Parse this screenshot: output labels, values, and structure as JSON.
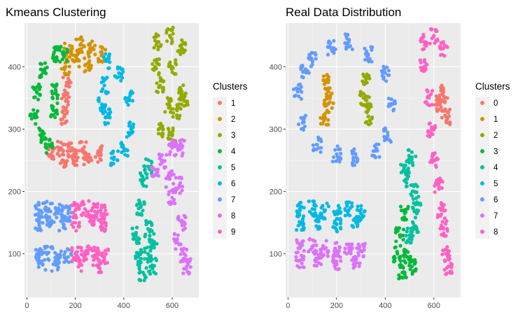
{
  "chart_data": [
    {
      "type": "scatter",
      "title": "Kmeans Clustering",
      "xlabel": "",
      "ylabel": "",
      "xlim": [
        -10,
        710
      ],
      "ylim": [
        30,
        470
      ],
      "x_ticks": [
        0,
        200,
        400,
        600
      ],
      "y_ticks": [
        100,
        200,
        300,
        400
      ],
      "grid": true,
      "legend": {
        "title": "Clusters",
        "placement": "right"
      },
      "series": [
        {
          "name": "1",
          "color": "#F8766D",
          "values": [
            [
              100,
              260
            ],
            [
              150,
              250
            ],
            [
              200,
              255
            ],
            [
              250,
              250
            ],
            [
              300,
              260
            ],
            [
              140,
              270
            ],
            [
              180,
              265
            ],
            [
              230,
              268
            ],
            [
              160,
              345
            ],
            [
              155,
              320
            ],
            [
              165,
              370
            ]
          ]
        },
        {
          "name": "2",
          "color": "#D39200",
          "values": [
            [
              170,
              425
            ],
            [
              220,
              435
            ],
            [
              270,
              430
            ],
            [
              310,
              420
            ],
            [
              200,
              410
            ],
            [
              250,
              405
            ],
            [
              160,
              400
            ]
          ]
        },
        {
          "name": "3",
          "color": "#93AA00",
          "values": [
            [
              540,
              440
            ],
            [
              590,
              450
            ],
            [
              640,
              430
            ],
            [
              530,
              400
            ],
            [
              600,
              400
            ],
            [
              550,
              370
            ],
            [
              580,
              340
            ],
            [
              560,
              300
            ],
            [
              600,
              290
            ],
            [
              620,
              330
            ],
            [
              650,
              345
            ],
            [
              640,
              360
            ]
          ]
        },
        {
          "name": "4",
          "color": "#00BA38",
          "values": [
            [
              40,
              360
            ],
            [
              70,
              395
            ],
            [
              110,
              420
            ],
            [
              150,
              420
            ],
            [
              30,
              320
            ],
            [
              60,
              290
            ],
            [
              90,
              275
            ],
            [
              120,
              360
            ],
            [
              110,
              330
            ]
          ]
        },
        {
          "name": "5",
          "color": "#00C19F",
          "values": [
            [
              480,
              220
            ],
            [
              500,
              240
            ],
            [
              470,
              175
            ],
            [
              450,
              130
            ],
            [
              460,
              95
            ],
            [
              480,
              70
            ],
            [
              520,
              80
            ],
            [
              500,
              140
            ],
            [
              520,
              120
            ],
            [
              500,
              100
            ]
          ]
        },
        {
          "name": "6",
          "color": "#00B9E3",
          "values": [
            [
              330,
              410
            ],
            [
              380,
              390
            ],
            [
              420,
              350
            ],
            [
              430,
              300
            ],
            [
              400,
              270
            ],
            [
              360,
              255
            ],
            [
              310,
              340
            ],
            [
              320,
              370
            ],
            [
              330,
              320
            ]
          ]
        },
        {
          "name": "7",
          "color": "#619CFF",
          "values": [
            [
              50,
              170
            ],
            [
              90,
              172
            ],
            [
              130,
              168
            ],
            [
              170,
              165
            ],
            [
              50,
              150
            ],
            [
              100,
              152
            ],
            [
              150,
              148
            ],
            [
              50,
              100
            ],
            [
              90,
              102
            ],
            [
              130,
              98
            ],
            [
              170,
              95
            ],
            [
              60,
              85
            ],
            [
              120,
              82
            ]
          ]
        },
        {
          "name": "8",
          "color": "#DB72FB",
          "values": [
            [
              530,
              235
            ],
            [
              560,
              250
            ],
            [
              600,
              270
            ],
            [
              640,
              270
            ],
            [
              590,
              220
            ],
            [
              630,
              210
            ],
            [
              600,
              190
            ],
            [
              640,
              150
            ],
            [
              620,
              120
            ],
            [
              650,
              100
            ],
            [
              660,
              80
            ]
          ]
        },
        {
          "name": "9",
          "color": "#FF61C3",
          "values": [
            [
              200,
              170
            ],
            [
              240,
              172
            ],
            [
              280,
              168
            ],
            [
              320,
              165
            ],
            [
              200,
              150
            ],
            [
              260,
              152
            ],
            [
              310,
              148
            ],
            [
              200,
              100
            ],
            [
              240,
              102
            ],
            [
              280,
              98
            ],
            [
              320,
              95
            ],
            [
              220,
              85
            ],
            [
              290,
              82
            ]
          ]
        }
      ]
    },
    {
      "type": "scatter",
      "title": "Real Data Distribution",
      "xlabel": "",
      "ylabel": "",
      "xlim": [
        -10,
        710
      ],
      "ylim": [
        30,
        470
      ],
      "x_ticks": [
        0,
        200,
        400,
        600
      ],
      "y_ticks": [
        100,
        200,
        300,
        400
      ],
      "grid": true,
      "legend": {
        "title": "Clusters",
        "placement": "right"
      },
      "series": [
        {
          "name": "0",
          "color": "#F8766D",
          "values": [
            [
              640,
              360
            ],
            [
              630,
              335
            ],
            [
              650,
              320
            ],
            [
              620,
              340
            ]
          ]
        },
        {
          "name": "1",
          "color": "#D39200",
          "values": [
            [
              155,
              375
            ],
            [
              170,
              350
            ],
            [
              150,
              320
            ],
            [
              165,
              340
            ]
          ]
        },
        {
          "name": "2",
          "color": "#93AA00",
          "values": [
            [
              320,
              375
            ],
            [
              310,
              350
            ],
            [
              330,
              320
            ],
            [
              325,
              340
            ]
          ]
        },
        {
          "name": "3",
          "color": "#00BA38",
          "values": [
            [
              480,
              165
            ],
            [
              460,
              130
            ],
            [
              450,
              100
            ],
            [
              470,
              70
            ],
            [
              510,
              80
            ],
            [
              490,
              95
            ]
          ]
        },
        {
          "name": "4",
          "color": "#00C19F",
          "values": [
            [
              510,
              255
            ],
            [
              490,
              220
            ],
            [
              480,
              240
            ],
            [
              520,
              200
            ],
            [
              530,
              170
            ],
            [
              520,
              140
            ],
            [
              500,
              130
            ]
          ]
        },
        {
          "name": "5",
          "color": "#00B9E3",
          "values": [
            [
              50,
              170
            ],
            [
              100,
              172
            ],
            [
              150,
              168
            ],
            [
              200,
              165
            ],
            [
              250,
              170
            ],
            [
              300,
              165
            ],
            [
              50,
              150
            ],
            [
              120,
              152
            ],
            [
              200,
              148
            ],
            [
              280,
              150
            ]
          ]
        },
        {
          "name": "6",
          "color": "#619CFF",
          "values": [
            [
              100,
              410
            ],
            [
              180,
              430
            ],
            [
              250,
              440
            ],
            [
              330,
              420
            ],
            [
              400,
              390
            ],
            [
              430,
              340
            ],
            [
              410,
              290
            ],
            [
              360,
              265
            ],
            [
              280,
              255
            ],
            [
              200,
              260
            ],
            [
              120,
              275
            ],
            [
              60,
              310
            ],
            [
              40,
              360
            ],
            [
              70,
              395
            ]
          ]
        },
        {
          "name": "7",
          "color": "#DB72FB",
          "values": [
            [
              50,
              110
            ],
            [
              100,
              112
            ],
            [
              150,
              108
            ],
            [
              200,
              105
            ],
            [
              250,
              110
            ],
            [
              300,
              105
            ],
            [
              50,
              90
            ],
            [
              120,
              92
            ],
            [
              200,
              88
            ],
            [
              280,
              90
            ]
          ]
        },
        {
          "name": "8",
          "color": "#FF61C3",
          "values": [
            [
              560,
              440
            ],
            [
              600,
              450
            ],
            [
              640,
              430
            ],
            [
              560,
              400
            ],
            [
              580,
              350
            ],
            [
              590,
              300
            ],
            [
              600,
              250
            ],
            [
              620,
              210
            ],
            [
              630,
              170
            ],
            [
              640,
              140
            ],
            [
              650,
              100
            ],
            [
              660,
              80
            ]
          ]
        }
      ]
    }
  ]
}
